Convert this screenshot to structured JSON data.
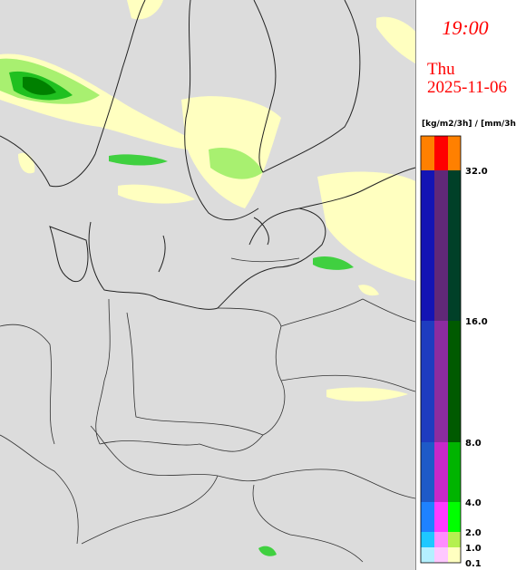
{
  "header": {
    "time": "19:00",
    "weekday": "Thu",
    "date": "2025-11-06"
  },
  "legend": {
    "unit": "[kg/m2/3h] / [mm/3h]",
    "labels": [
      "32.0",
      "16.0",
      "8.0",
      "4.0",
      "2.0",
      "1.0",
      "0.1"
    ]
  }
}
